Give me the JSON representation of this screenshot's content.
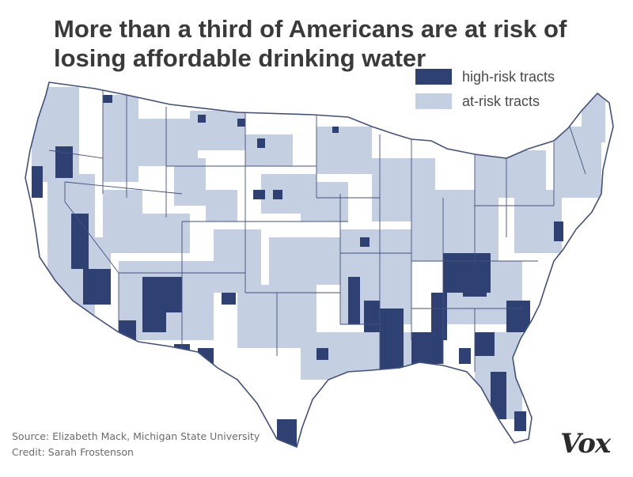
{
  "title": "More than a third of Americans are at risk of losing affordable drinking water",
  "legend": [
    {
      "label": "high-risk tracts",
      "color": "#2f4172"
    },
    {
      "label": "at-risk tracts",
      "color": "#c5cfe2"
    }
  ],
  "source": "Source: Elizabeth Mack, Michigan State University",
  "credit": "Credit: Sarah Frostenson",
  "logo": "Vox",
  "colors": {
    "land": "#ffffff",
    "border": "#42507c",
    "at_risk": "#c5cfe2",
    "high_risk": "#2f4172",
    "title": "#3a3a3a"
  }
}
